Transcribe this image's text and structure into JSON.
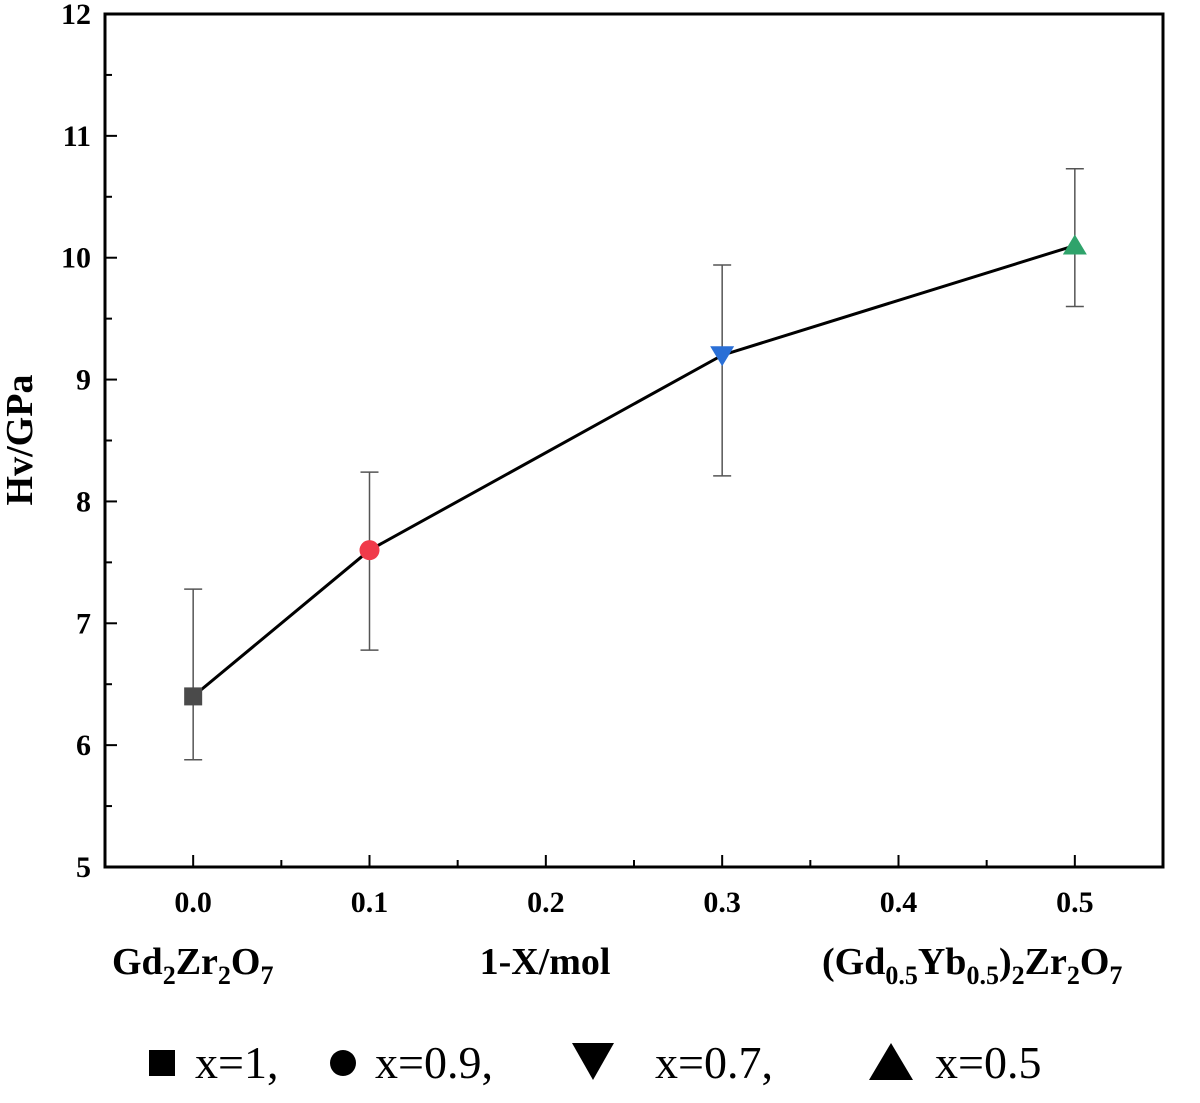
{
  "chart_data": {
    "type": "line",
    "xlim": [
      -0.05,
      0.55
    ],
    "ylim": [
      5,
      12
    ],
    "x_ticks": [
      "0.0",
      "0.1",
      "0.2",
      "0.3",
      "0.4",
      "0.5"
    ],
    "y_ticks": [
      "5",
      "6",
      "7",
      "8",
      "9",
      "10",
      "11",
      "12"
    ],
    "ylabel": "Hv/GPa",
    "xlabel": "1-X/mol",
    "x_end_labels": {
      "left": {
        "main": "Gd",
        "s1": "2",
        "m2": "Zr",
        "s2": "2",
        "m3": "O",
        "s3": "7"
      },
      "right": {
        "p1": "(Gd",
        "s1": "0.5",
        "p2": "Yb",
        "s2": "0.5",
        "p3": ")",
        "s3": "2",
        "p4": "Zr",
        "s4": "2",
        "p5": "O",
        "s5": "7"
      }
    },
    "points": [
      {
        "x": 0.0,
        "y": 6.4,
        "err_low": 5.88,
        "err_high": 7.28,
        "marker": "square",
        "color": "#4a4a4a",
        "legend": "x=1,"
      },
      {
        "x": 0.1,
        "y": 7.6,
        "err_low": 6.78,
        "err_high": 8.24,
        "marker": "circle",
        "color": "#f03a4a",
        "legend": "x=0.9,"
      },
      {
        "x": 0.3,
        "y": 9.2,
        "err_low": 8.21,
        "err_high": 9.94,
        "marker": "triangle-down",
        "color": "#2a6fd6",
        "legend": "x=0.7,"
      },
      {
        "x": 0.5,
        "y": 10.1,
        "err_low": 9.6,
        "err_high": 10.73,
        "marker": "triangle-up",
        "color": "#2fa36b",
        "legend": "x=0.5"
      }
    ],
    "line_color": "#000000",
    "grid": false
  }
}
